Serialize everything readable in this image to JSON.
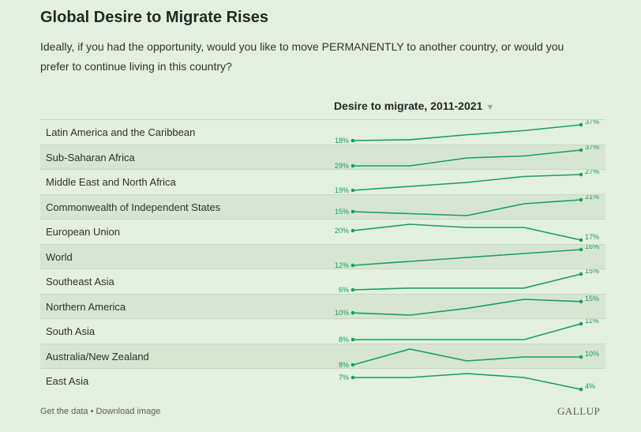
{
  "title": "Global Desire to Migrate Rises",
  "subtitle": "Ideally, if you had the opportunity, would you like to move PERMANENTLY to another country, or would you prefer to continue living in this country?",
  "column_header": "Desire to migrate, 2011-2021",
  "sort_icon": "triangle-down-icon",
  "footer": {
    "get_data": "Get the data",
    "separator": " • ",
    "download": "Download image"
  },
  "brand": "GALLUP",
  "colors": {
    "background": "#e3f0df",
    "line": "#17a05d",
    "shade": "#d7e6d2",
    "rule": "#c9d6c5"
  },
  "chart_data": {
    "type": "line",
    "title": "Desire to migrate, 2011-2021",
    "series": [
      {
        "name": "Latin America and the Caribbean",
        "values": [
          18,
          19,
          25,
          30,
          37
        ],
        "start_label": "18%",
        "end_label": "37%"
      },
      {
        "name": "Sub-Saharan Africa",
        "values": [
          29,
          29,
          33,
          34,
          37
        ],
        "start_label": "29%",
        "end_label": "37%"
      },
      {
        "name": "Middle East and North Africa",
        "values": [
          19,
          21,
          23,
          26,
          27
        ],
        "start_label": "19%",
        "end_label": "27%"
      },
      {
        "name": "Commonwealth of Independent States",
        "values": [
          15,
          14,
          13,
          19,
          21
        ],
        "start_label": "15%",
        "end_label": "21%"
      },
      {
        "name": "European Union",
        "values": [
          20,
          22,
          21,
          21,
          17
        ],
        "start_label": "20%",
        "end_label": "17%"
      },
      {
        "name": "World",
        "values": [
          12,
          13,
          14,
          15,
          16
        ],
        "start_label": "12%",
        "end_label": "16%"
      },
      {
        "name": "Southeast Asia",
        "values": [
          6,
          7,
          7,
          7,
          15
        ],
        "start_label": "6%",
        "end_label": "15%"
      },
      {
        "name": "Northern America",
        "values": [
          10,
          9,
          12,
          16,
          15
        ],
        "start_label": "10%",
        "end_label": "15%"
      },
      {
        "name": "South Asia",
        "values": [
          8,
          8,
          8,
          8,
          11
        ],
        "start_label": "8%",
        "end_label": "11%"
      },
      {
        "name": "Australia/New Zealand",
        "values": [
          8,
          12,
          9,
          10,
          10
        ],
        "start_label": "8%",
        "end_label": "10%"
      },
      {
        "name": "East Asia",
        "values": [
          7,
          7,
          8,
          7,
          4
        ],
        "start_label": "7%",
        "end_label": "4%"
      }
    ]
  }
}
